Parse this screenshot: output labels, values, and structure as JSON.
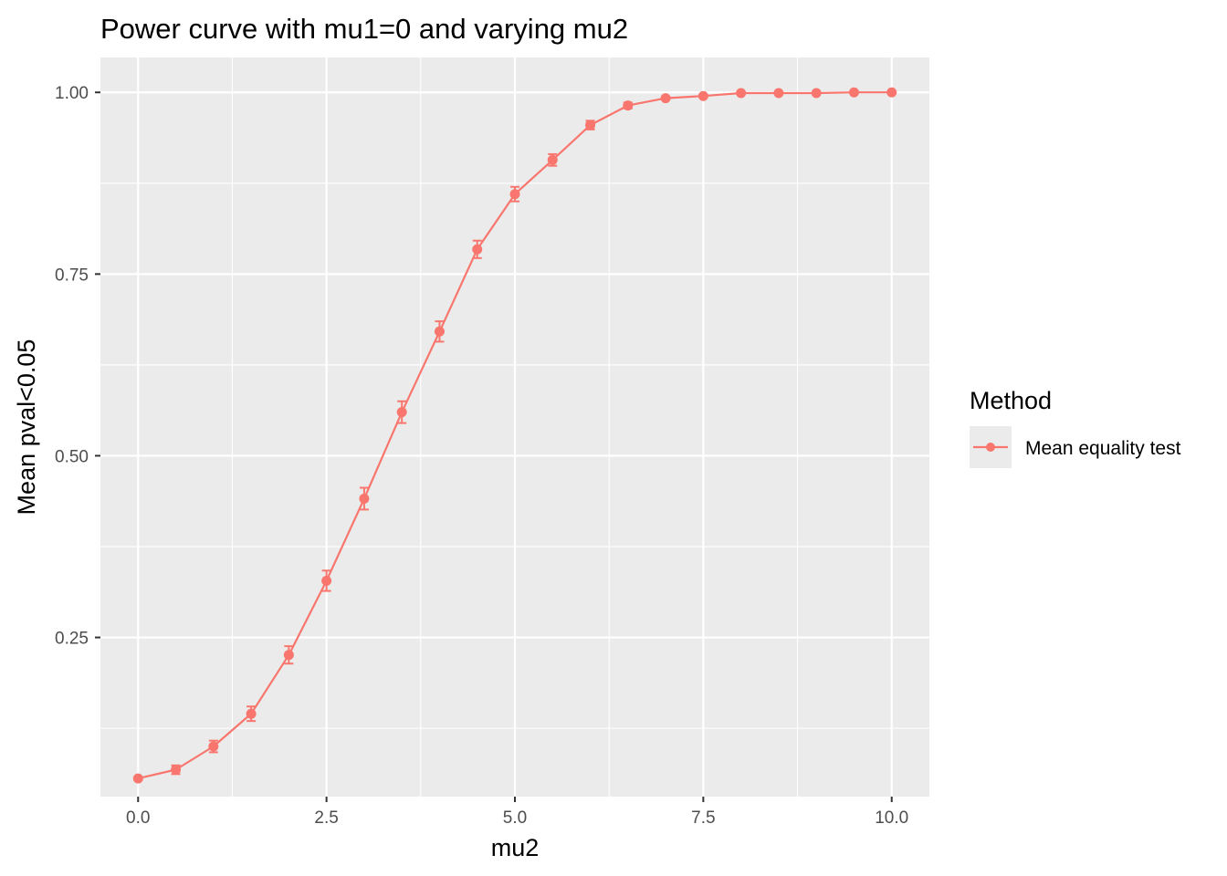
{
  "chart_data": {
    "type": "line",
    "title": "Power curve with mu1=0 and varying mu2",
    "xlabel": "mu2",
    "ylabel": "Mean pval<0.05",
    "xlim": [
      -0.5,
      10.5
    ],
    "ylim": [
      0.031,
      1.048
    ],
    "x_ticks": [
      0,
      2.5,
      5,
      7.5,
      10
    ],
    "x_tick_labels": [
      "0.0",
      "2.5",
      "5.0",
      "7.5",
      "10.0"
    ],
    "y_ticks": [
      0.25,
      0.5,
      0.75,
      1.0
    ],
    "y_tick_labels": [
      "0.25",
      "0.50",
      "0.75",
      "1.00"
    ],
    "grid": true,
    "legend": {
      "title": "Method",
      "position": "right",
      "entries": [
        {
          "label": "Mean equality test",
          "color": "#F8766D"
        }
      ]
    },
    "colors": {
      "panel_bg": "#EBEBEB",
      "grid": "#FFFFFF",
      "series": "#F8766D",
      "tick_text": "#4D4D4D",
      "tick_mark": "#333333"
    },
    "series": [
      {
        "name": "Mean equality test",
        "x": [
          0,
          0.5,
          1,
          1.5,
          2,
          2.5,
          3,
          3.5,
          4,
          4.5,
          5,
          5.5,
          6,
          6.5,
          7,
          7.5,
          8,
          8.5,
          9,
          9.5,
          10
        ],
        "y": [
          0.056,
          0.068,
          0.1,
          0.145,
          0.226,
          0.328,
          0.441,
          0.56,
          0.671,
          0.784,
          0.86,
          0.907,
          0.955,
          0.982,
          0.992,
          0.995,
          0.999,
          0.999,
          0.999,
          1.0,
          1.0
        ],
        "err": [
          0.002,
          0.006,
          0.008,
          0.01,
          0.012,
          0.014,
          0.015,
          0.015,
          0.014,
          0.012,
          0.01,
          0.008,
          0.006,
          0.004,
          0.002,
          0.002,
          0.001,
          0.001,
          0.001,
          0.0005,
          0.0005
        ]
      }
    ]
  }
}
